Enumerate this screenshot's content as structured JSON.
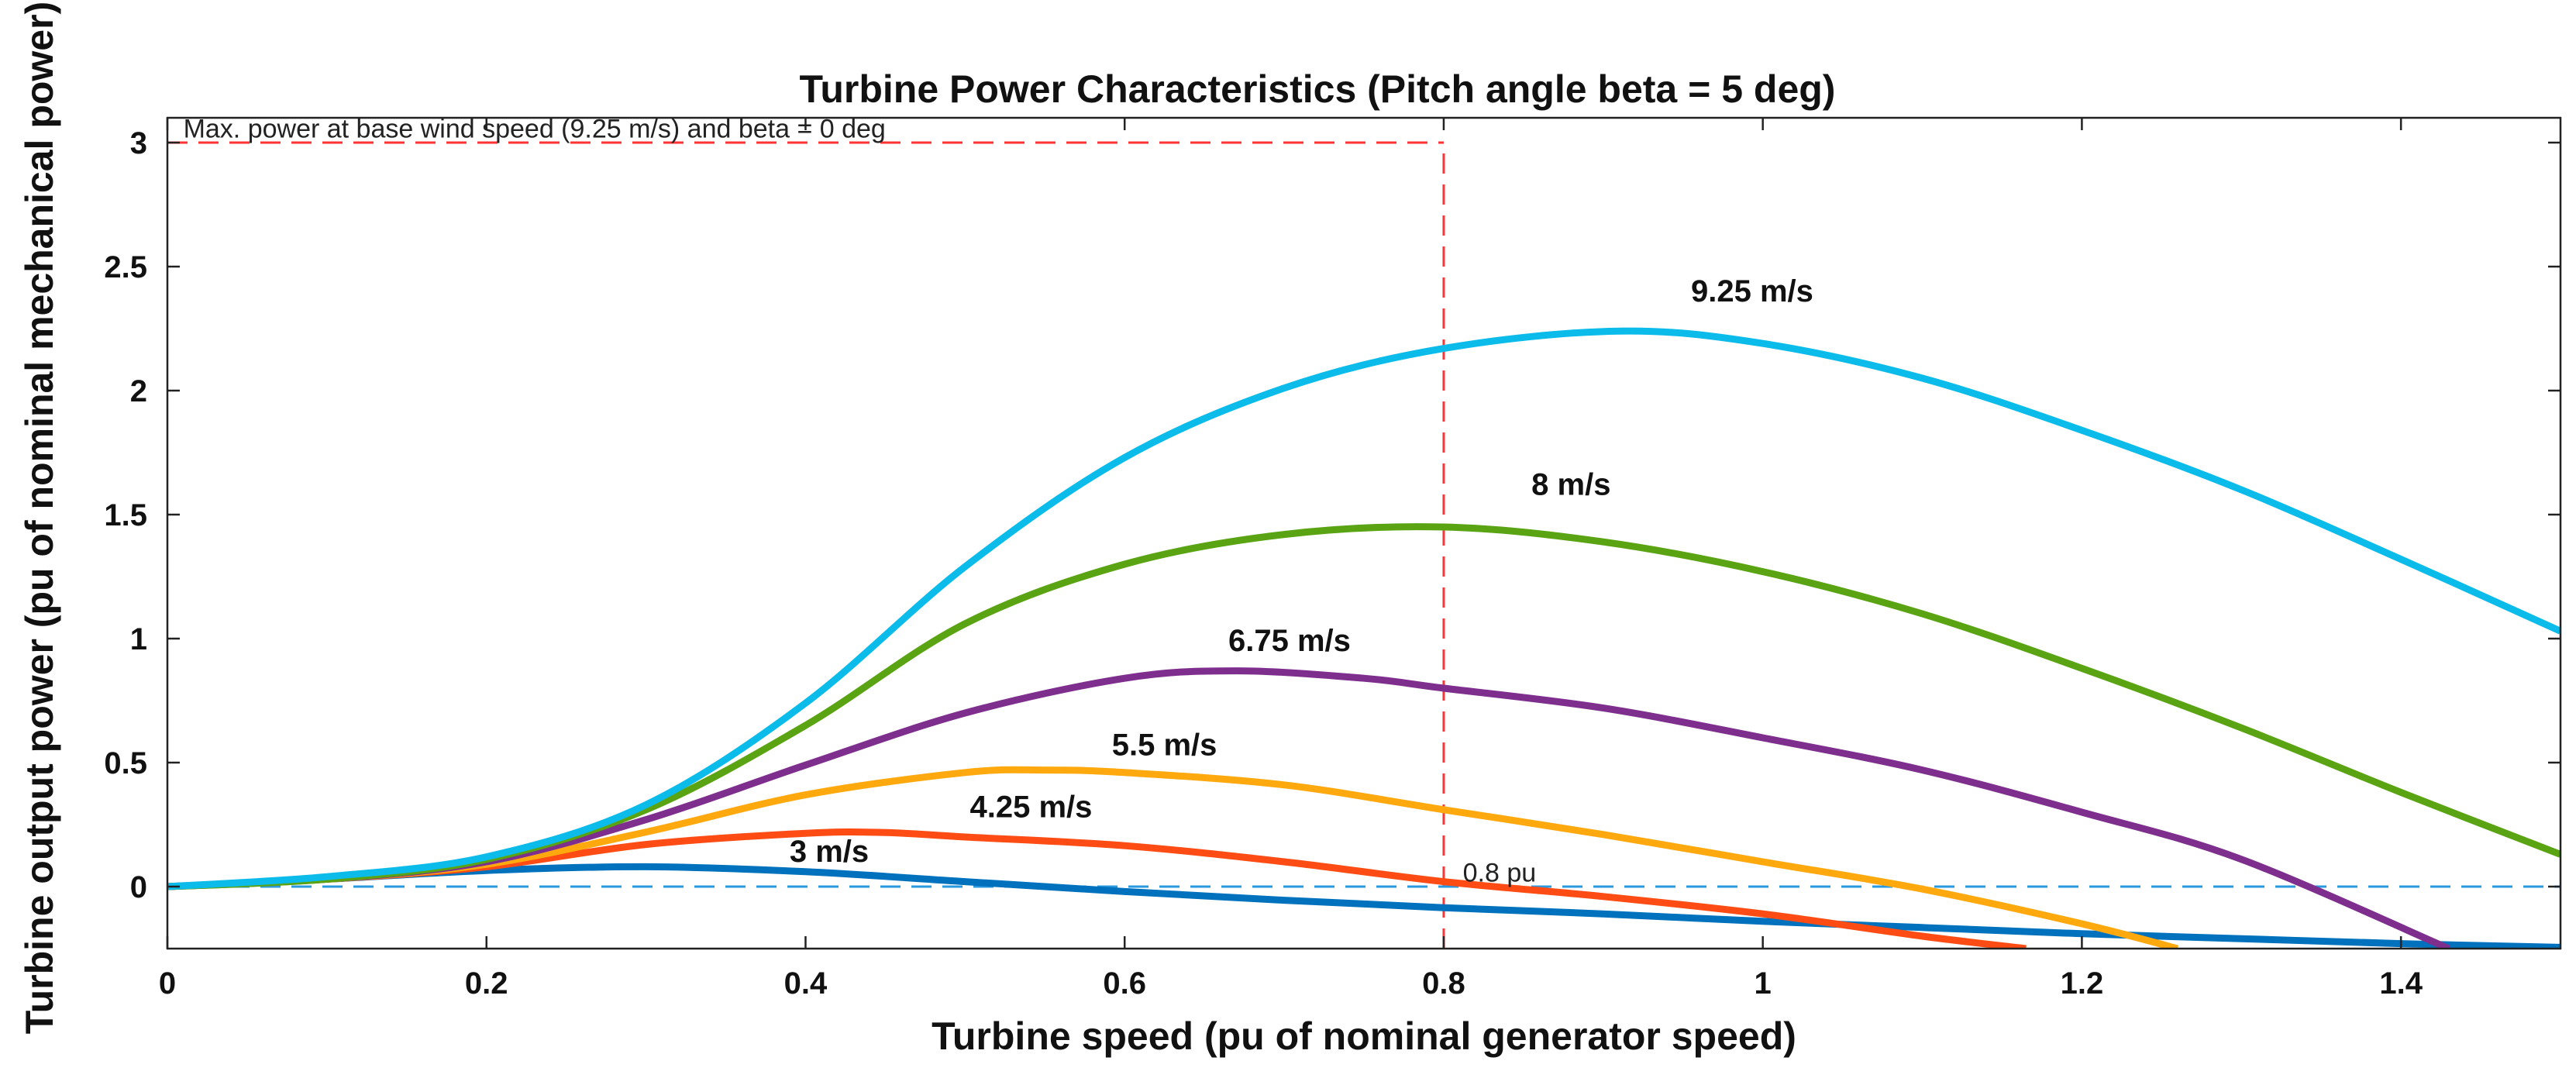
{
  "chart_data": {
    "type": "line",
    "title": "Turbine Power Characteristics (Pitch angle beta = 5 deg)",
    "xlabel": "Turbine speed (pu of nominal generator speed)",
    "ylabel": "Turbine output power (pu of nominal mechanical power)",
    "xlim": [
      0,
      1.5
    ],
    "ylim": [
      -0.25,
      3.1
    ],
    "xticks": [
      0,
      0.2,
      0.4,
      0.6,
      0.8,
      1,
      1.2,
      1.4
    ],
    "xtick_labels": [
      "0",
      "0.2",
      "0.4",
      "0.6",
      "0.8",
      "1",
      "1.2",
      "1.4"
    ],
    "yticks": [
      0,
      0.5,
      1,
      1.5,
      2,
      2.5,
      3
    ],
    "ytick_labels": [
      "0",
      "0.5",
      "1",
      "1.5",
      "2",
      "2.5",
      "3"
    ],
    "grid": false,
    "series": [
      {
        "name": "3 m/s",
        "color": "#0072BD",
        "x": [
          0,
          0.1,
          0.2,
          0.3,
          0.4,
          0.5,
          0.6,
          0.7,
          0.8,
          0.9,
          1.0,
          1.1,
          1.2,
          1.3,
          1.4,
          1.5
        ],
        "y": [
          0,
          0.03,
          0.065,
          0.08,
          0.06,
          0.02,
          -0.02,
          -0.055,
          -0.085,
          -0.11,
          -0.14,
          -0.165,
          -0.19,
          -0.21,
          -0.23,
          -0.245
        ]
      },
      {
        "name": "4.25 m/s",
        "color": "#FF4C14",
        "x": [
          0,
          0.1,
          0.2,
          0.3,
          0.4,
          0.45,
          0.5,
          0.6,
          0.7,
          0.8,
          0.9,
          1.0,
          1.1,
          1.165
        ],
        "y": [
          0,
          0.03,
          0.08,
          0.17,
          0.215,
          0.218,
          0.2,
          0.165,
          0.1,
          0.02,
          -0.04,
          -0.11,
          -0.2,
          -0.25
        ]
      },
      {
        "name": "5.5 m/s",
        "color": "#FFA90F",
        "x": [
          0,
          0.1,
          0.2,
          0.3,
          0.4,
          0.5,
          0.55,
          0.6,
          0.7,
          0.8,
          0.9,
          1.0,
          1.1,
          1.2,
          1.26
        ],
        "y": [
          0,
          0.03,
          0.09,
          0.22,
          0.37,
          0.46,
          0.47,
          0.46,
          0.41,
          0.31,
          0.21,
          0.1,
          -0.01,
          -0.15,
          -0.25
        ]
      },
      {
        "name": "6.75 m/s",
        "color": "#7E2F8E",
        "x": [
          0,
          0.1,
          0.2,
          0.3,
          0.4,
          0.5,
          0.6,
          0.67,
          0.75,
          0.8,
          0.9,
          1.0,
          1.1,
          1.2,
          1.3,
          1.43
        ],
        "y": [
          0,
          0.03,
          0.1,
          0.27,
          0.49,
          0.7,
          0.84,
          0.87,
          0.84,
          0.8,
          0.72,
          0.6,
          0.47,
          0.3,
          0.11,
          -0.25
        ]
      },
      {
        "name": "8 m/s",
        "color": "#5AA413",
        "x": [
          0,
          0.1,
          0.2,
          0.3,
          0.4,
          0.5,
          0.6,
          0.7,
          0.8,
          0.9,
          1.0,
          1.1,
          1.2,
          1.3,
          1.4,
          1.5
        ],
        "y": [
          0,
          0.03,
          0.11,
          0.31,
          0.65,
          1.06,
          1.3,
          1.42,
          1.45,
          1.39,
          1.27,
          1.1,
          0.88,
          0.64,
          0.38,
          0.13
        ]
      },
      {
        "name": "9.25 m/s",
        "color": "#0BBCEB",
        "x": [
          0,
          0.1,
          0.2,
          0.3,
          0.4,
          0.5,
          0.6,
          0.7,
          0.8,
          0.91,
          1.0,
          1.1,
          1.2,
          1.3,
          1.4,
          1.5
        ],
        "y": [
          0,
          0.04,
          0.12,
          0.33,
          0.74,
          1.29,
          1.73,
          2.01,
          2.17,
          2.24,
          2.19,
          2.05,
          1.84,
          1.6,
          1.32,
          1.03
        ]
      }
    ],
    "reference_lines": [
      {
        "kind": "hline",
        "y": 3,
        "x_end": 0.8,
        "color": "#FF3333",
        "style": "dashed"
      },
      {
        "kind": "vline",
        "x": 0.8,
        "y_end": 3,
        "color": "#FF3333",
        "style": "dashed"
      },
      {
        "kind": "hline",
        "y": 0,
        "color": "#2A9AE0",
        "style": "dashed"
      }
    ],
    "annotations": [
      {
        "text": "Max. power at base wind speed (9.25 m/s) and beta = 0 deg",
        "x": 0.01,
        "y": 3.02
      },
      {
        "text": "0.8 pu",
        "x": 0.812,
        "y": 0.02
      },
      {
        "text": "9.25 m/s",
        "x": 0.955,
        "y": 2.36
      },
      {
        "text": "8 m/s",
        "x": 0.855,
        "y": 1.58
      },
      {
        "text": "6.75 m/s",
        "x": 0.665,
        "y": 0.95
      },
      {
        "text": "5.5 m/s",
        "x": 0.592,
        "y": 0.53
      },
      {
        "text": "4.25 m/s",
        "x": 0.503,
        "y": 0.28
      },
      {
        "text": "3 m/s",
        "x": 0.39,
        "y": 0.1
      }
    ]
  }
}
